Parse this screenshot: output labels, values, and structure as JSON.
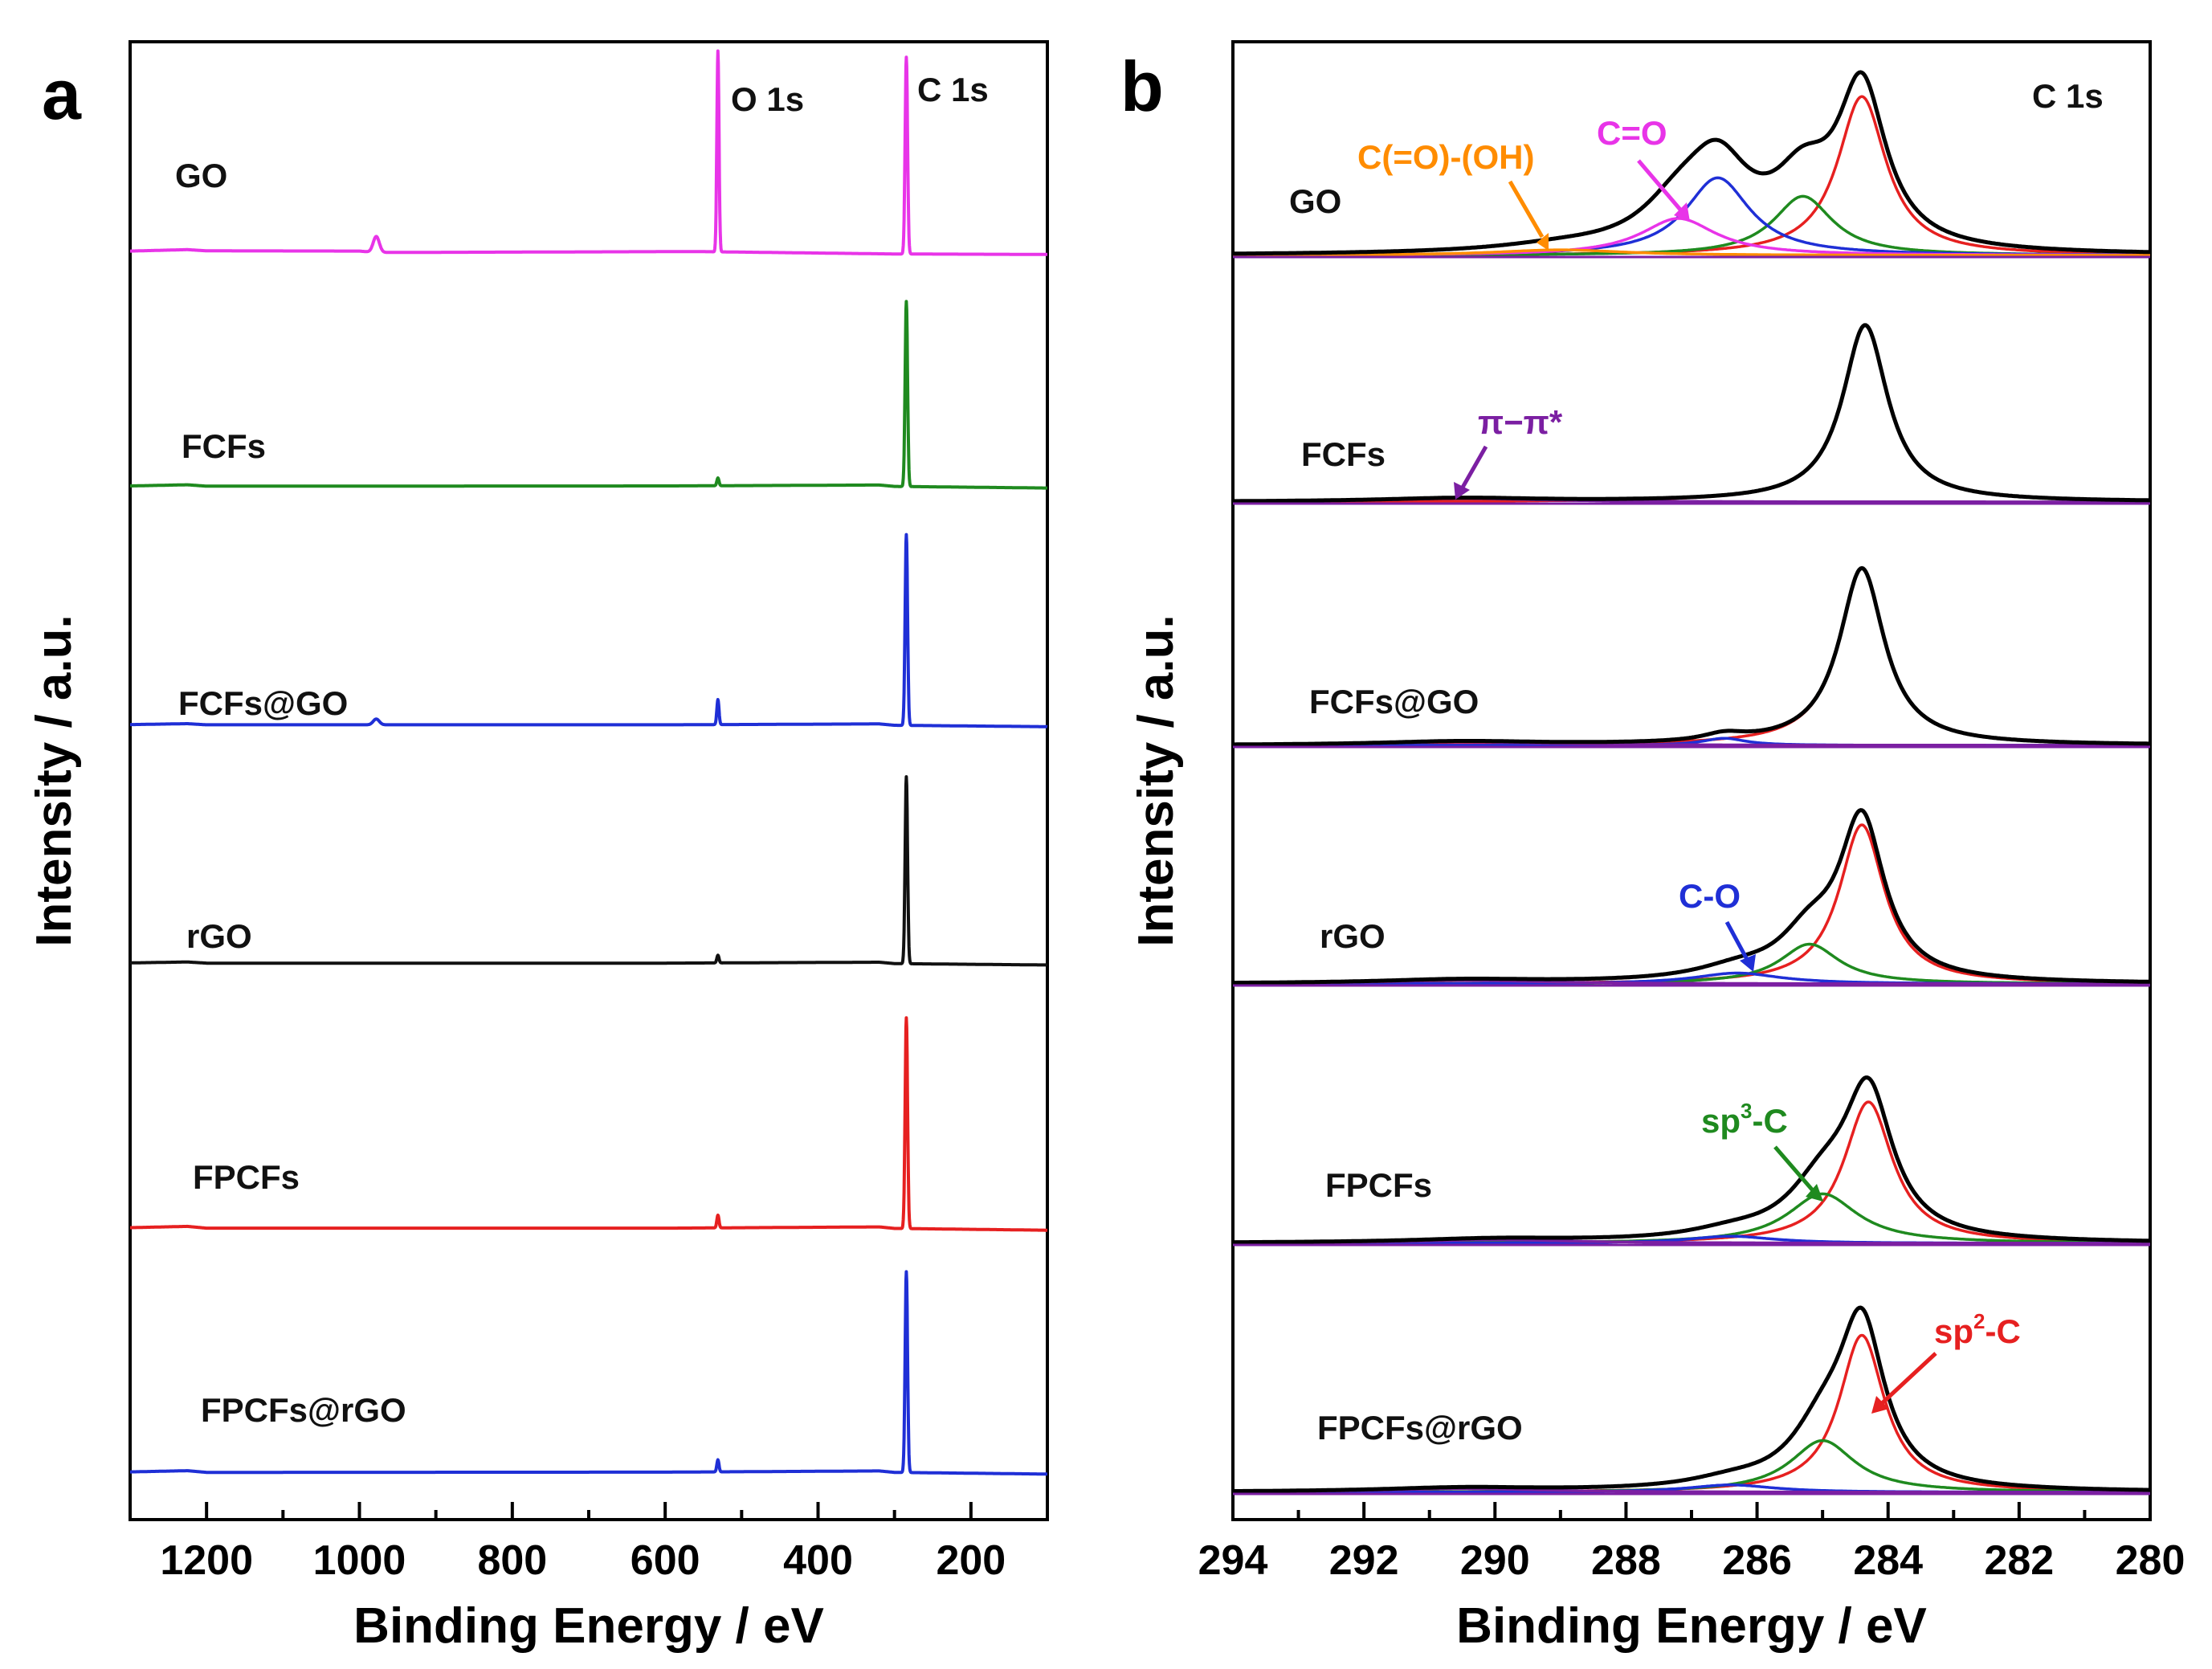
{
  "chart_data": [
    {
      "panel": "a",
      "type": "line",
      "xlabel": "Binding Energy / eV",
      "ylabel": "Intensity / a.u.",
      "xlim": [
        1300,
        100
      ],
      "x_ticks": [
        1200,
        1000,
        800,
        600,
        400,
        200
      ],
      "peak_labels": [
        "O 1s",
        "C 1s"
      ],
      "series": [
        {
          "name": "GO",
          "color": "#e834e8",
          "stack_index": 0,
          "baseline": [
            [
              1300,
              0.58
            ],
            [
              1225,
              0.64
            ],
            [
              1200,
              0.59
            ],
            [
              1000,
              0.58
            ],
            [
              980,
              0.52
            ],
            [
              560,
              0.56
            ],
            [
              300,
              0.46
            ],
            [
              100,
              0.44
            ]
          ],
          "peaks": [
            [
              531,
              1.0
            ],
            [
              284.5,
              0.98
            ],
            [
              978,
              0.08
            ]
          ]
        },
        {
          "name": "FCFs",
          "color": "#1f8a1f",
          "stack_index": 1,
          "baseline": [
            [
              1300,
              0.52
            ],
            [
              1225,
              0.57
            ],
            [
              1200,
              0.51
            ],
            [
              600,
              0.52
            ],
            [
              320,
              0.56
            ],
            [
              300,
              0.5
            ],
            [
              100,
              0.43
            ]
          ],
          "peaks": [
            [
              531,
              0.04
            ],
            [
              284.5,
              0.96
            ]
          ]
        },
        {
          "name": "FCFs@GO",
          "color": "#1f2fd6",
          "stack_index": 2,
          "baseline": [
            [
              1300,
              0.55
            ],
            [
              1225,
              0.59
            ],
            [
              1200,
              0.54
            ],
            [
              600,
              0.54
            ],
            [
              320,
              0.58
            ],
            [
              300,
              0.52
            ],
            [
              100,
              0.46
            ]
          ],
          "peaks": [
            [
              531,
              0.13
            ],
            [
              284.5,
              0.99
            ],
            [
              978,
              0.03
            ]
          ]
        },
        {
          "name": "rGO",
          "color": "#111111",
          "stack_index": 3,
          "baseline": [
            [
              1300,
              0.56
            ],
            [
              1225,
              0.6
            ],
            [
              1200,
              0.55
            ],
            [
              600,
              0.55
            ],
            [
              320,
              0.59
            ],
            [
              300,
              0.53
            ],
            [
              100,
              0.47
            ]
          ],
          "peaks": [
            [
              531,
              0.04
            ],
            [
              284.5,
              0.97
            ]
          ]
        },
        {
          "name": "FPCFs",
          "color": "#e62020",
          "stack_index": 4,
          "baseline": [
            [
              1300,
              0.55
            ],
            [
              1225,
              0.6
            ],
            [
              1200,
              0.53
            ],
            [
              600,
              0.53
            ],
            [
              320,
              0.58
            ],
            [
              300,
              0.52
            ],
            [
              100,
              0.45
            ]
          ],
          "peaks": [
            [
              531,
              0.06
            ],
            [
              284.5,
              0.99
            ]
          ]
        },
        {
          "name": "FPCFs@rGO",
          "color": "#1f2fd6",
          "stack_index": 5,
          "baseline": [
            [
              1300,
              0.58
            ],
            [
              1225,
              0.63
            ],
            [
              1200,
              0.56
            ],
            [
              600,
              0.57
            ],
            [
              320,
              0.62
            ],
            [
              300,
              0.56
            ],
            [
              100,
              0.49
            ]
          ],
          "peaks": [
            [
              531,
              0.06
            ],
            [
              284.5,
              1.0
            ]
          ]
        }
      ]
    },
    {
      "panel": "b",
      "type": "line",
      "xlabel": "Binding Energy / eV",
      "ylabel": "Intensity / a.u.",
      "xlim": [
        294,
        280
      ],
      "x_ticks": [
        294,
        292,
        290,
        288,
        286,
        284,
        282,
        280
      ],
      "title_label": "C 1s",
      "component_colors": {
        "envelope": "#000000",
        "sp2-C": "#e62020",
        "sp3-C": "#1f8a1f",
        "C-O": "#1f2fd6",
        "C=O": "#e834e8",
        "C(=O)-(OH)": "#ff8c00",
        "pi-pi*": "#7b1fa2"
      },
      "series": [
        {
          "name": "GO",
          "stack_index": 0,
          "components": [
            {
              "name": "sp2-C",
              "center": 284.4,
              "height": 0.86,
              "width": 0.45
            },
            {
              "name": "sp3-C",
              "center": 285.3,
              "height": 0.32,
              "width": 0.55
            },
            {
              "name": "C-O",
              "center": 286.6,
              "height": 0.42,
              "width": 0.6
            },
            {
              "name": "C=O",
              "center": 287.2,
              "height": 0.2,
              "width": 0.7
            },
            {
              "name": "C(=O)-(OH)",
              "center": 289.0,
              "height": 0.03,
              "width": 1.2
            }
          ]
        },
        {
          "name": "FCFs",
          "stack_index": 1,
          "components": [
            {
              "name": "sp2-C",
              "center": 284.35,
              "height": 1.0,
              "width": 0.42
            },
            {
              "name": "pi-pi*",
              "center": 290.5,
              "height": 0.02,
              "width": 1.5
            }
          ]
        },
        {
          "name": "FCFs@GO",
          "stack_index": 2,
          "components": [
            {
              "name": "sp2-C",
              "center": 284.4,
              "height": 1.0,
              "width": 0.42
            },
            {
              "name": "C-O",
              "center": 286.5,
              "height": 0.04,
              "width": 0.4
            },
            {
              "name": "pi-pi*",
              "center": 290.5,
              "height": 0.02,
              "width": 1.5
            }
          ]
        },
        {
          "name": "rGO",
          "stack_index": 3,
          "components": [
            {
              "name": "sp2-C",
              "center": 284.4,
              "height": 0.88,
              "width": 0.42
            },
            {
              "name": "sp3-C",
              "center": 285.2,
              "height": 0.22,
              "width": 0.55
            },
            {
              "name": "C-O",
              "center": 286.3,
              "height": 0.06,
              "width": 0.8
            },
            {
              "name": "pi-pi*",
              "center": 290.5,
              "height": 0.02,
              "width": 1.5
            }
          ]
        },
        {
          "name": "FPCFs",
          "stack_index": 4,
          "components": [
            {
              "name": "sp2-C",
              "center": 284.3,
              "height": 0.8,
              "width": 0.45
            },
            {
              "name": "sp3-C",
              "center": 285.0,
              "height": 0.28,
              "width": 0.65
            },
            {
              "name": "C-O",
              "center": 286.4,
              "height": 0.04,
              "width": 0.8
            },
            {
              "name": "pi-pi*",
              "center": 290.0,
              "height": 0.02,
              "width": 1.5
            }
          ]
        },
        {
          "name": "FPCFs@rGO",
          "stack_index": 5,
          "components": [
            {
              "name": "sp2-C",
              "center": 284.4,
              "height": 0.85,
              "width": 0.42
            },
            {
              "name": "sp3-C",
              "center": 285.0,
              "height": 0.28,
              "width": 0.6
            },
            {
              "name": "C-O",
              "center": 286.4,
              "height": 0.04,
              "width": 0.8
            },
            {
              "name": "pi-pi*",
              "center": 290.5,
              "height": 0.02,
              "width": 1.5
            }
          ]
        }
      ]
    }
  ],
  "annotations": {
    "panel_a_letter": "a",
    "panel_b_letter": "b",
    "o1s": "O 1s",
    "c1s": "C 1s",
    "c1s_b": "C 1s",
    "cooh": "C(=O)-(OH)",
    "co_double": "C=O",
    "pipi": "π−π*",
    "c_o": "C-O",
    "sp3_base": "sp",
    "sp3_sup": "3",
    "sp3_tail": "-C",
    "sp2_base": "sp",
    "sp2_sup": "2",
    "sp2_tail": "-C"
  }
}
